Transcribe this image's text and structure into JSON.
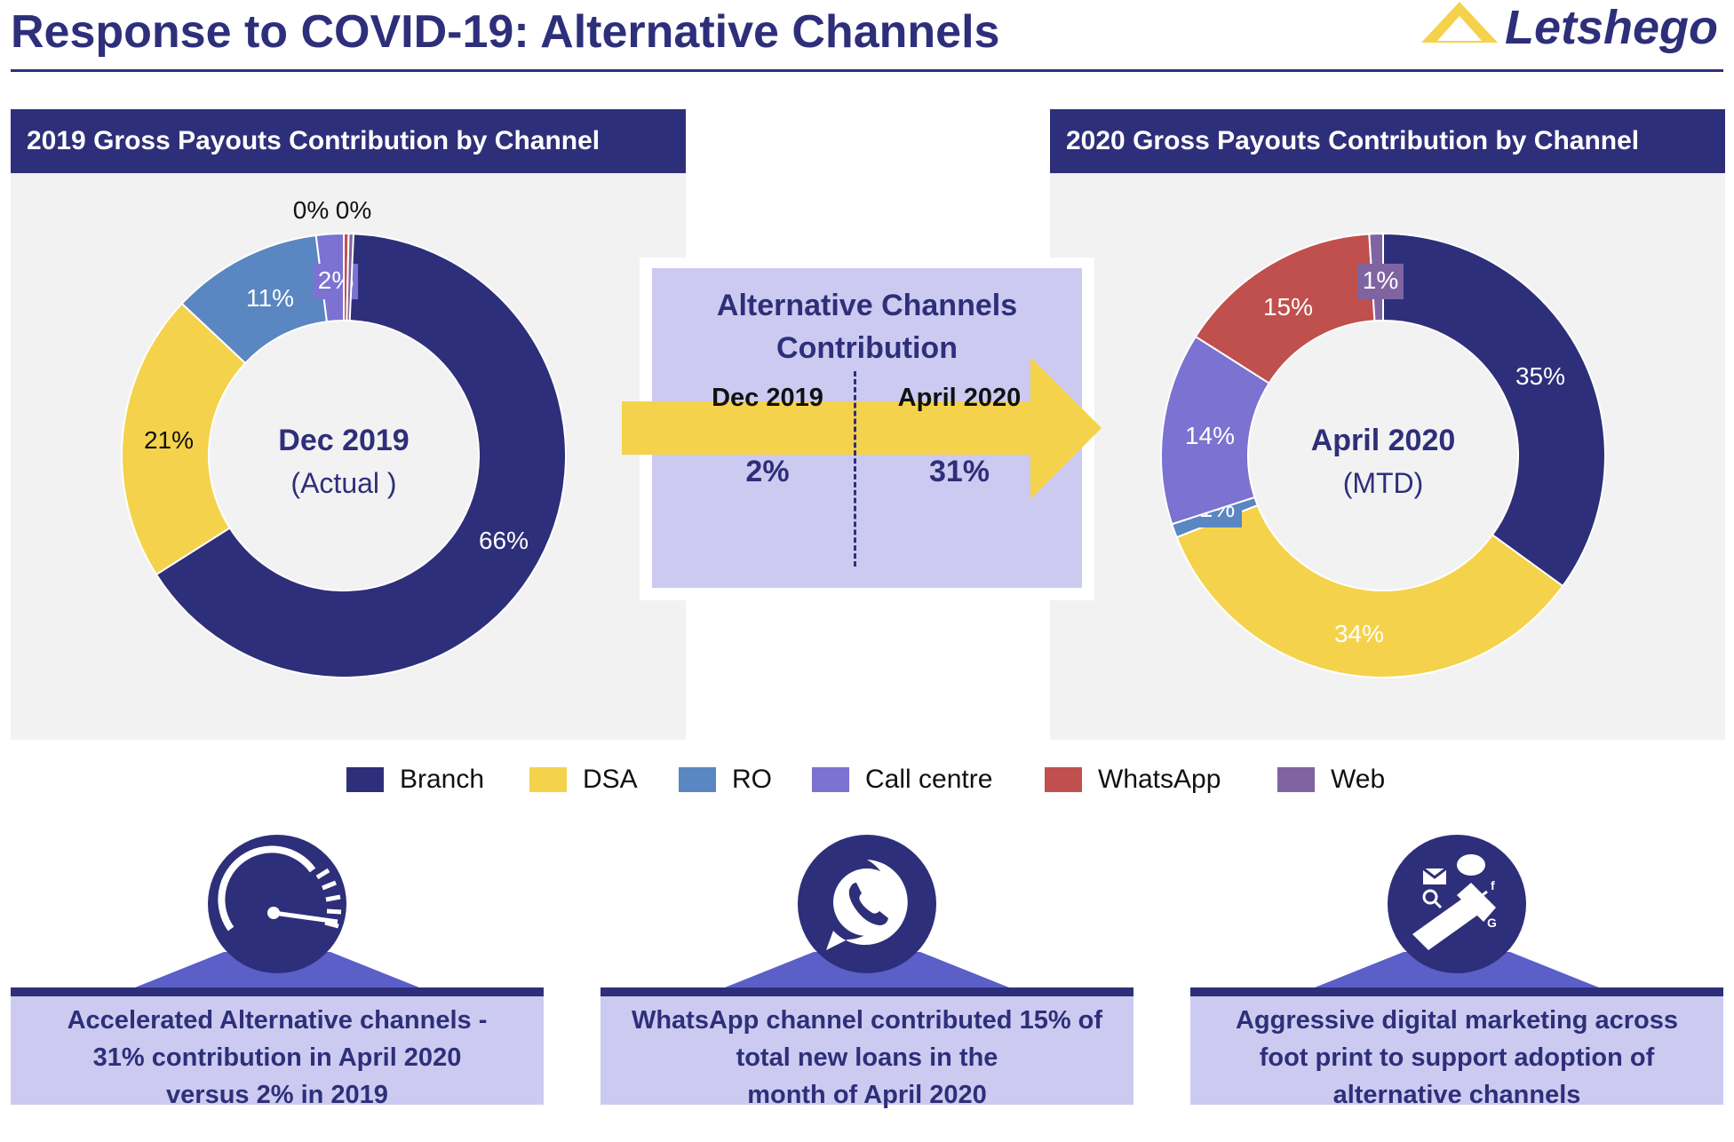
{
  "page": {
    "title": "Response to COVID-19:  Alternative Channels",
    "logo_text": "Letshego"
  },
  "colors": {
    "navy": "#2e2f7a",
    "dsa": "#f5d24b",
    "ro": "#5a86c2",
    "call_centre": "#7b72d1",
    "whatsapp": "#c0504d",
    "web": "#8064a2",
    "panel_bg": "#f2f2f2",
    "lavender": "#cccaf0"
  },
  "left_panel": {
    "header": "2019 Gross Payouts Contribution by Channel",
    "center_line1": "Dec 2019",
    "center_line2": "(Actual )"
  },
  "right_panel": {
    "header": "2020 Gross Payouts Contribution by Channel",
    "center_line1": "April  2020",
    "center_line2": "(MTD)"
  },
  "center_box": {
    "title_line1": "Alternative Channels",
    "title_line2": "Contribution",
    "col1_date": "Dec 2019",
    "col1_value": "2%",
    "col2_date": "April 2020",
    "col2_value": "31%"
  },
  "chart_data": [
    {
      "type": "pie",
      "title": "2019 Gross Payouts Contribution by Channel",
      "categories": [
        "Branch",
        "DSA",
        "RO",
        "Call centre",
        "WhatsApp",
        "Web"
      ],
      "values": [
        66,
        21,
        11,
        2,
        0,
        0
      ],
      "labels": [
        "66%",
        "21%",
        "11%",
        "2%",
        "0%",
        "0%"
      ],
      "donut": true
    },
    {
      "type": "pie",
      "title": "2020 Gross Payouts Contribution by Channel",
      "categories": [
        "Branch",
        "DSA",
        "RO",
        "Call centre",
        "WhatsApp",
        "Web"
      ],
      "values": [
        35,
        34,
        1,
        14,
        15,
        1
      ],
      "labels": [
        "35%",
        "34%",
        "1%",
        "14%",
        "15%",
        "1%"
      ],
      "donut": true
    }
  ],
  "legend": [
    {
      "label": "Branch",
      "color": "#2e2f7a"
    },
    {
      "label": "DSA",
      "color": "#f5d24b"
    },
    {
      "label": "RO",
      "color": "#5a86c2"
    },
    {
      "label": "Call centre",
      "color": "#7b72d1"
    },
    {
      "label": "WhatsApp",
      "color": "#c0504d"
    },
    {
      "label": "Web",
      "color": "#8064a2"
    }
  ],
  "features": [
    {
      "icon": "speedometer-icon",
      "lines": [
        "Accelerated Alternative channels  -",
        "31% contribution in April 2020",
        "versus 2% in 2019"
      ]
    },
    {
      "icon": "whatsapp-icon",
      "lines": [
        "WhatsApp channel contributed 15% of",
        "total new loans in the",
        "month of April 2020"
      ]
    },
    {
      "icon": "megaphone-icon",
      "lines": [
        "Aggressive digital marketing across",
        "foot print to support adoption of",
        "alternative channels"
      ]
    }
  ]
}
